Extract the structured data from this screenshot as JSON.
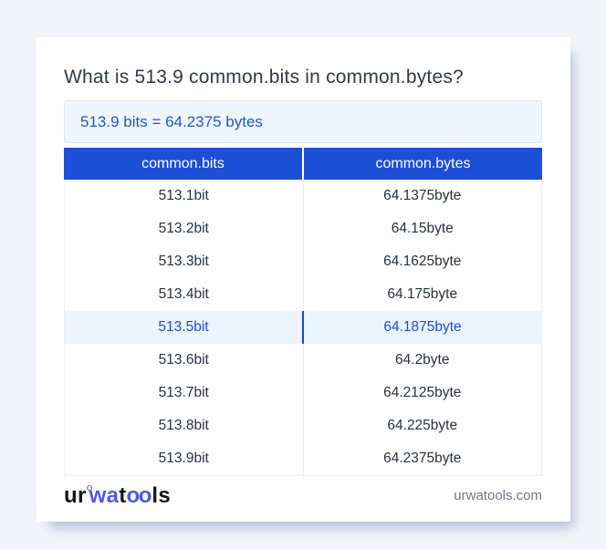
{
  "card": {
    "title": "What is 513.9 common.bits in common.bytes?",
    "result_banner": "513.9 bits = 64.2375 bytes"
  },
  "table": {
    "headers": [
      "common.bits",
      "common.bytes"
    ],
    "rows": [
      {
        "bits": "513.1bit",
        "bytes": "64.1375byte",
        "highlighted": false
      },
      {
        "bits": "513.2bit",
        "bytes": "64.15byte",
        "highlighted": false
      },
      {
        "bits": "513.3bit",
        "bytes": "64.1625byte",
        "highlighted": false
      },
      {
        "bits": "513.4bit",
        "bytes": "64.175byte",
        "highlighted": false
      },
      {
        "bits": "513.5bit",
        "bytes": "64.1875byte",
        "highlighted": true
      },
      {
        "bits": "513.6bit",
        "bytes": "64.2byte",
        "highlighted": false
      },
      {
        "bits": "513.7bit",
        "bytes": "64.2125byte",
        "highlighted": false
      },
      {
        "bits": "513.8bit",
        "bytes": "64.225byte",
        "highlighted": false
      },
      {
        "bits": "513.9bit",
        "bytes": "64.2375byte",
        "highlighted": false
      }
    ]
  },
  "footer": {
    "logo": {
      "seg1": "ur",
      "seg2": "wa",
      "seg3": "t",
      "seg4": "oo",
      "seg5": "ls"
    },
    "website": "urwatools.com"
  },
  "colors": {
    "page_background": "#f2f4f9",
    "table_header_blue": "#1d4ed8",
    "banner_background": "#eef5fd",
    "banner_text": "#2458c5",
    "highlight_row_background": "#ebf3fd",
    "highlight_row_text": "#1d4ed8",
    "highlight_divider": "#1b49c0",
    "logo_blue": "#4c5ae4",
    "body_text": "#273142",
    "website_text": "#6f7684"
  }
}
